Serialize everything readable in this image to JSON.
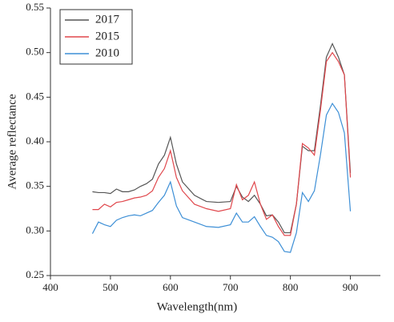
{
  "chart_data": {
    "type": "line",
    "xlabel": "Wavelength(nm)",
    "ylabel": "Average reflectance",
    "x": [
      470,
      480,
      490,
      500,
      510,
      520,
      530,
      540,
      550,
      560,
      570,
      580,
      590,
      600,
      610,
      620,
      640,
      660,
      680,
      700,
      710,
      720,
      730,
      740,
      750,
      760,
      770,
      780,
      790,
      800,
      810,
      820,
      830,
      840,
      850,
      860,
      870,
      880,
      890,
      900
    ],
    "series": [
      {
        "name": "2017",
        "color": "#555555",
        "values": [
          0.344,
          0.343,
          0.343,
          0.342,
          0.347,
          0.344,
          0.344,
          0.346,
          0.35,
          0.353,
          0.358,
          0.375,
          0.385,
          0.405,
          0.375,
          0.355,
          0.34,
          0.333,
          0.332,
          0.333,
          0.35,
          0.338,
          0.333,
          0.34,
          0.33,
          0.317,
          0.318,
          0.31,
          0.298,
          0.298,
          0.33,
          0.395,
          0.39,
          0.39,
          0.44,
          0.495,
          0.51,
          0.495,
          0.475,
          0.365
        ]
      },
      {
        "name": "2015",
        "color": "#e0474c",
        "values": [
          0.324,
          0.324,
          0.33,
          0.327,
          0.332,
          0.333,
          0.335,
          0.337,
          0.338,
          0.34,
          0.345,
          0.36,
          0.37,
          0.39,
          0.36,
          0.345,
          0.33,
          0.325,
          0.322,
          0.325,
          0.352,
          0.335,
          0.34,
          0.355,
          0.33,
          0.313,
          0.318,
          0.305,
          0.295,
          0.295,
          0.33,
          0.398,
          0.393,
          0.385,
          0.435,
          0.49,
          0.5,
          0.49,
          0.475,
          0.36
        ]
      },
      {
        "name": "2010",
        "color": "#3d8fd6",
        "values": [
          0.297,
          0.31,
          0.307,
          0.305,
          0.312,
          0.315,
          0.317,
          0.318,
          0.317,
          0.32,
          0.323,
          0.332,
          0.34,
          0.355,
          0.328,
          0.315,
          0.31,
          0.305,
          0.304,
          0.307,
          0.32,
          0.31,
          0.31,
          0.316,
          0.305,
          0.295,
          0.293,
          0.288,
          0.277,
          0.276,
          0.298,
          0.343,
          0.333,
          0.345,
          0.385,
          0.43,
          0.443,
          0.433,
          0.41,
          0.322
        ]
      }
    ],
    "xlim": [
      400,
      950
    ],
    "xticks": [
      400,
      500,
      600,
      700,
      800,
      900
    ],
    "ylim": [
      0.25,
      0.55
    ],
    "yticks": [
      0.25,
      {
        "value": 0.3,
        "label": "0.30"
      },
      0.35,
      {
        "value": 0.4,
        "label": "0.40"
      },
      0.45,
      {
        "value": 0.5,
        "label": "0.50"
      },
      0.55
    ],
    "legend": "upper left"
  }
}
